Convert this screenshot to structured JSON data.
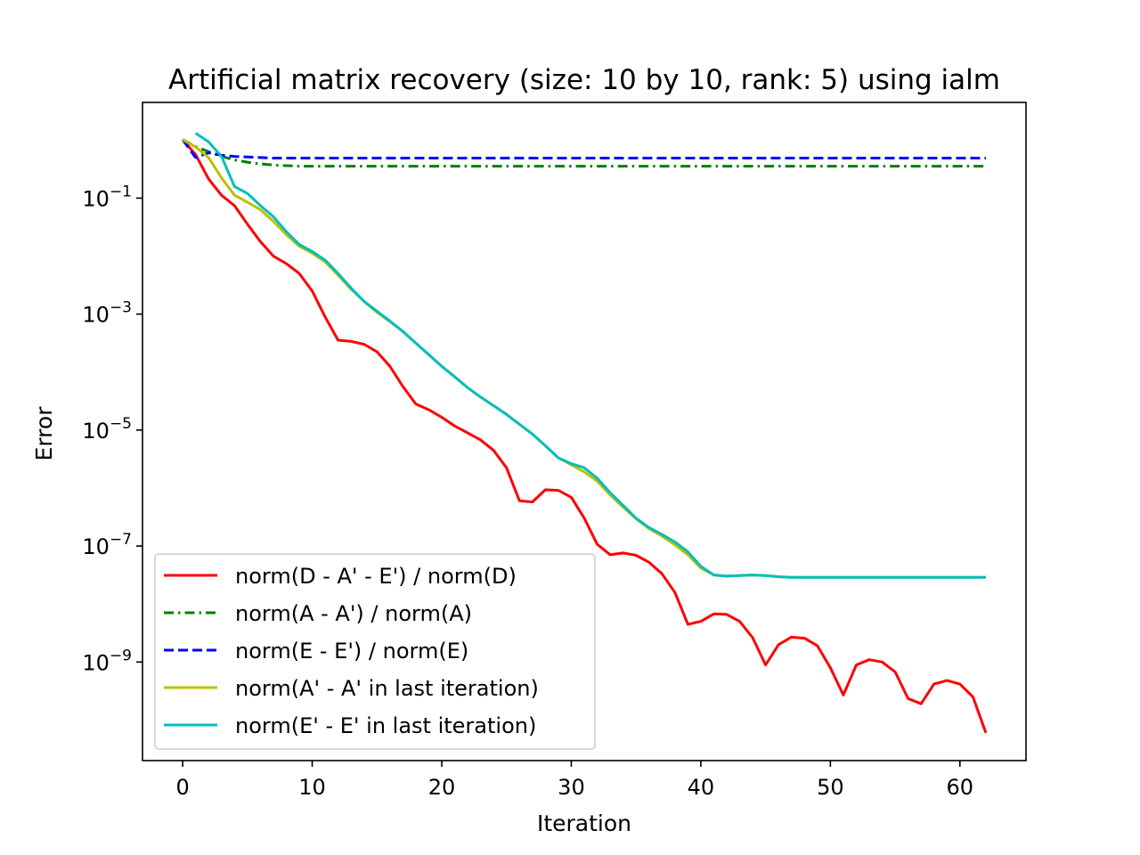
{
  "chart_data": {
    "type": "line",
    "title": "Artificial matrix recovery (size: 10 by 10, rank: 5) using ialm",
    "xlabel": "Iteration",
    "ylabel": "Error",
    "xlim": [
      -3.1,
      65.1
    ],
    "ylim_log10": [
      -10.7,
      0.65
    ],
    "yscale": "log",
    "grid": false,
    "legend_position": "lower-left",
    "x_ticks": [
      {
        "value": 0,
        "label": "0"
      },
      {
        "value": 10,
        "label": "10"
      },
      {
        "value": 20,
        "label": "20"
      },
      {
        "value": 30,
        "label": "30"
      },
      {
        "value": 40,
        "label": "40"
      },
      {
        "value": 50,
        "label": "50"
      },
      {
        "value": 60,
        "label": "60"
      }
    ],
    "y_ticks": [
      {
        "exp": -1,
        "base": "10",
        "sup": "−1"
      },
      {
        "exp": -3,
        "base": "10",
        "sup": "−3"
      },
      {
        "exp": -5,
        "base": "10",
        "sup": "−5"
      },
      {
        "exp": -7,
        "base": "10",
        "sup": "−7"
      },
      {
        "exp": -9,
        "base": "10",
        "sup": "−9"
      }
    ],
    "series": [
      {
        "name": "norm(D - A' - E') / norm(D)",
        "color": "#ff0000",
        "dash": "solid",
        "x_start": 0,
        "log10_values": [
          0.01,
          -0.25,
          -0.67,
          -0.95,
          -1.13,
          -1.45,
          -1.75,
          -2.0,
          -2.13,
          -2.3,
          -2.6,
          -3.05,
          -3.45,
          -3.47,
          -3.52,
          -3.65,
          -3.9,
          -4.25,
          -4.55,
          -4.65,
          -4.78,
          -4.93,
          -5.05,
          -5.17,
          -5.35,
          -5.65,
          -6.22,
          -6.24,
          -6.03,
          -6.04,
          -6.16,
          -6.52,
          -6.97,
          -7.15,
          -7.12,
          -7.16,
          -7.28,
          -7.48,
          -7.8,
          -8.35,
          -8.3,
          -8.17,
          -8.18,
          -8.3,
          -8.58,
          -9.05,
          -8.7,
          -8.57,
          -8.59,
          -8.72,
          -9.1,
          -9.57,
          -9.05,
          -8.96,
          -9.0,
          -9.17,
          -9.63,
          -9.72,
          -9.38,
          -9.32,
          -9.38,
          -9.6,
          -10.22
        ]
      },
      {
        "name": "norm(A - A') / norm(A)",
        "color": "#008000",
        "dash": "dashdot",
        "x_start": 0,
        "log10_values": [
          0.01,
          -0.11,
          -0.2,
          -0.28,
          -0.34,
          -0.38,
          -0.41,
          -0.43,
          -0.44,
          -0.45,
          -0.45,
          -0.45,
          -0.45,
          -0.45,
          -0.45,
          -0.45,
          -0.45,
          -0.45,
          -0.45,
          -0.45,
          -0.45,
          -0.45,
          -0.45,
          -0.45,
          -0.45,
          -0.45,
          -0.45,
          -0.45,
          -0.45,
          -0.45,
          -0.45,
          -0.45,
          -0.45,
          -0.45,
          -0.45,
          -0.45,
          -0.45,
          -0.45,
          -0.45,
          -0.45,
          -0.45,
          -0.45,
          -0.45,
          -0.45,
          -0.45,
          -0.45,
          -0.45,
          -0.45,
          -0.45,
          -0.45,
          -0.45,
          -0.45,
          -0.45,
          -0.45,
          -0.45,
          -0.45,
          -0.45,
          -0.45,
          -0.45,
          -0.45,
          -0.45,
          -0.45,
          -0.45
        ]
      },
      {
        "name": "norm(E - E') / norm(E)",
        "color": "#0000ff",
        "dash": "dashed",
        "x_start": 0,
        "log10_values": [
          0.01,
          -0.3,
          -0.22,
          -0.26,
          -0.28,
          -0.29,
          -0.3,
          -0.31,
          -0.31,
          -0.31,
          -0.31,
          -0.31,
          -0.31,
          -0.31,
          -0.31,
          -0.31,
          -0.31,
          -0.31,
          -0.31,
          -0.31,
          -0.31,
          -0.31,
          -0.31,
          -0.31,
          -0.31,
          -0.31,
          -0.31,
          -0.31,
          -0.31,
          -0.31,
          -0.31,
          -0.31,
          -0.31,
          -0.31,
          -0.31,
          -0.31,
          -0.31,
          -0.31,
          -0.31,
          -0.31,
          -0.31,
          -0.31,
          -0.31,
          -0.31,
          -0.31,
          -0.31,
          -0.31,
          -0.31,
          -0.31,
          -0.31,
          -0.31,
          -0.31,
          -0.31,
          -0.31,
          -0.31,
          -0.31,
          -0.31,
          -0.31,
          -0.31,
          -0.31,
          -0.31,
          -0.31,
          -0.31
        ]
      },
      {
        "name": "norm(A' - A' in last iteration)",
        "color": "#bfbf00",
        "dash": "solid",
        "x_start": 0,
        "log10_values": [
          0.01,
          -0.12,
          -0.3,
          -0.65,
          -0.95,
          -1.07,
          -1.2,
          -1.4,
          -1.63,
          -1.83,
          -1.95,
          -2.1,
          -2.33,
          -2.57,
          -2.78,
          -2.97,
          -3.13,
          -3.3,
          -3.5,
          -3.7,
          -3.9,
          -4.08,
          -4.27,
          -4.43,
          -4.58,
          -4.73,
          -4.9,
          -5.07,
          -5.27,
          -5.48,
          -5.6,
          -5.72,
          -5.88,
          -6.12,
          -6.33,
          -6.53,
          -6.7,
          -6.83,
          -6.98,
          -7.15,
          -7.38,
          -7.5,
          -7.52,
          -7.51,
          -7.5,
          -7.51,
          -7.53,
          -7.54,
          -7.54,
          -7.54,
          -7.54,
          -7.54,
          -7.54,
          -7.54,
          -7.54,
          -7.54,
          -7.54,
          -7.54,
          -7.54,
          -7.54,
          -7.54,
          -7.54,
          -7.54
        ]
      },
      {
        "name": "norm(E' - E' in last iteration)",
        "color": "#00bfbf",
        "dash": "solid",
        "x_start": 1,
        "log10_values": [
          0.12,
          -0.03,
          -0.28,
          -0.8,
          -0.92,
          -1.13,
          -1.32,
          -1.58,
          -1.8,
          -1.92,
          -2.07,
          -2.3,
          -2.55,
          -2.78,
          -2.95,
          -3.12,
          -3.3,
          -3.5,
          -3.7,
          -3.9,
          -4.08,
          -4.27,
          -4.43,
          -4.58,
          -4.73,
          -4.9,
          -5.07,
          -5.27,
          -5.48,
          -5.58,
          -5.65,
          -5.83,
          -6.08,
          -6.3,
          -6.52,
          -6.68,
          -6.8,
          -6.93,
          -7.1,
          -7.35,
          -7.5,
          -7.52,
          -7.51,
          -7.5,
          -7.51,
          -7.53,
          -7.54,
          -7.54,
          -7.54,
          -7.54,
          -7.54,
          -7.54,
          -7.54,
          -7.54,
          -7.54,
          -7.54,
          -7.54,
          -7.54,
          -7.54,
          -7.54,
          -7.54,
          -7.54
        ]
      }
    ]
  }
}
